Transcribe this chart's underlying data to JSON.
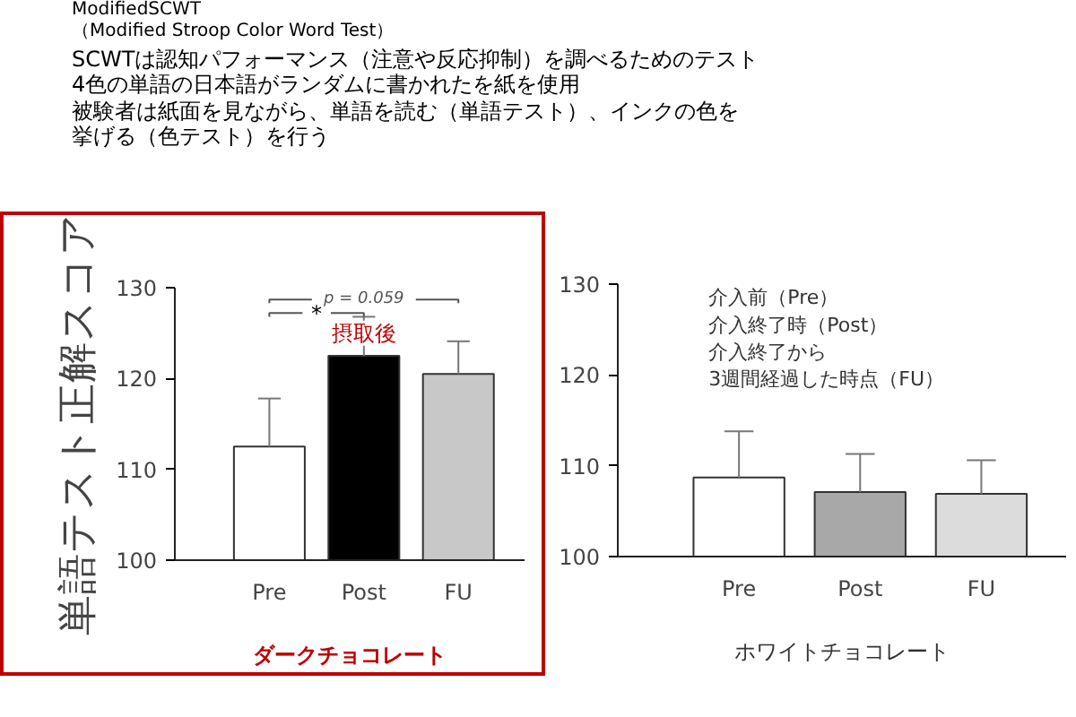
{
  "chart_data": [
    {
      "type": "bar",
      "title": "ModifiedSCWT",
      "subtitle": "（Modified Stroop Color Word Test）",
      "ylabel": "単語テスト正解スコア",
      "xlabel": "ダークチョコレート",
      "categories": [
        "Pre",
        "Post",
        "FU"
      ],
      "values": [
        112.5,
        122.5,
        120.5
      ],
      "colors": [
        "#ffffff",
        "#000000",
        "#c8c8c8"
      ],
      "errors": [
        [
          112.5,
          117.8
        ],
        [
          122.5,
          126.8
        ],
        [
          120.5,
          124.1
        ]
      ],
      "ylim": [
        100,
        130
      ],
      "yticks": [
        100,
        110,
        120,
        130
      ],
      "annotations": [
        "SCWTは認知パフォーマンス（注意や反応抑制）を調べるためのテスト",
        "4色の単語の日本語がランダムに書かれたを紙を使用",
        "被験者は紙面を見ながら、単語を読む（単語テスト）、インクの色を",
        "挙げる（色テスト）を行う",
        "p = 0.059",
        "*",
        "摂取後"
      ],
      "grid": false
    },
    {
      "type": "bar",
      "xlabel": "ホワイトチョコレート",
      "categories": [
        "Pre",
        "Post",
        "FU"
      ],
      "values": [
        108.7,
        107.1,
        106.9
      ],
      "colors": [
        "#ffffff",
        "#a8a8a8",
        "#dcdcdc"
      ],
      "errors": [
        [
          108.7,
          113.8
        ],
        [
          107.1,
          111.3
        ],
        [
          106.9,
          110.6
        ]
      ],
      "ylim": [
        100,
        130
      ],
      "yticks": [
        100,
        110,
        120,
        130
      ],
      "annotations": [
        "介入前（Pre）",
        "介入終了時（Post）",
        "介入終了から",
        "3週間経過した時点（FU）"
      ],
      "grid": false
    }
  ]
}
